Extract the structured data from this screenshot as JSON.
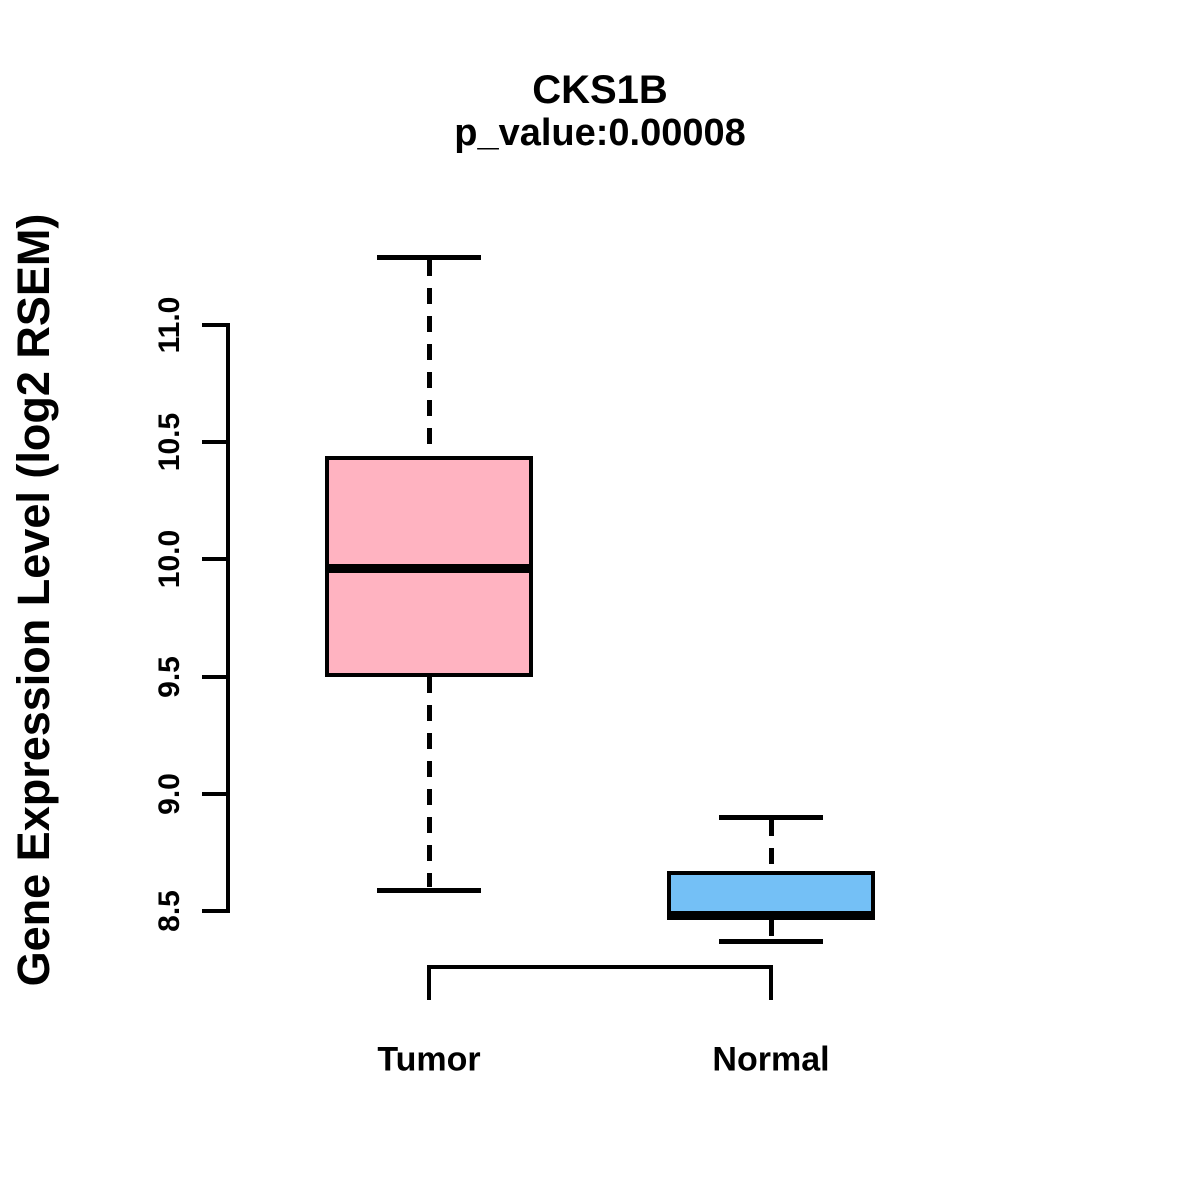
{
  "title": "CKS1B",
  "subtitle": "p_value:0.00008",
  "chart_data": {
    "type": "boxplot",
    "title": "CKS1B",
    "subtitle": "p_value:0.00008",
    "xlabel": "",
    "ylabel": "Gene Expression Level (log2 RSEM)",
    "ylim": [
      8.5,
      11.0
    ],
    "yticks": [
      8.5,
      9.0,
      9.5,
      10.0,
      10.5,
      11.0
    ],
    "ytick_labels": [
      "8.5",
      "9.0",
      "9.5",
      "10.0",
      "10.5",
      "11.0"
    ],
    "grid": false,
    "legend": "none",
    "categories": [
      "Tumor",
      "Normal"
    ],
    "series": [
      {
        "name": "Tumor",
        "fill_color": "#FFB3C1",
        "whisker_low": 8.59,
        "q1": 9.5,
        "median": 9.96,
        "q3": 10.44,
        "whisker_high": 11.29
      },
      {
        "name": "Normal",
        "fill_color": "#74C0F6",
        "whisker_low": 8.37,
        "q1": 8.46,
        "median": 8.48,
        "q3": 8.67,
        "whisker_high": 8.9
      }
    ],
    "colors": {
      "box_border": "#000000",
      "median_line": "#000000",
      "whisker": "#000000",
      "axis": "#000000",
      "text": "#000000",
      "background": "#FFFFFF"
    },
    "annotations": {
      "comparison_bracket": {
        "between": [
          "Tumor",
          "Normal"
        ],
        "position": "below-boxes",
        "label": ""
      }
    }
  }
}
